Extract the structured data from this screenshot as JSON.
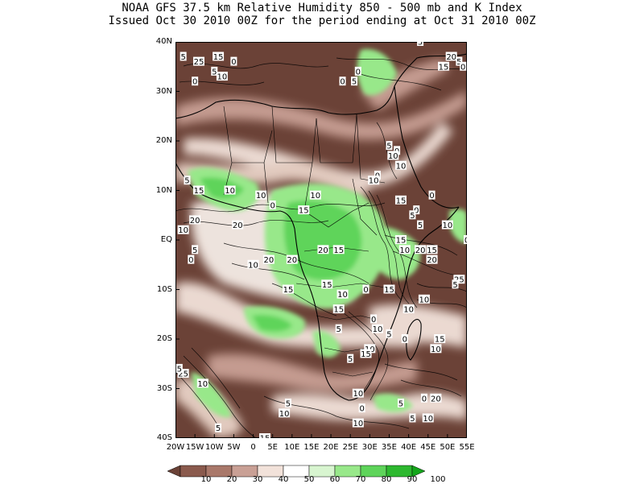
{
  "header": {
    "title_line1": "NOAA GFS 37.5 km Relative Humidity 850 - 500 mb and K Index",
    "title_line2": "Issued Oct 30 2010 00Z for the period ending at Oct 31 2010 00Z"
  },
  "axes": {
    "lat_labels": [
      "40N",
      "30N",
      "20N",
      "10N",
      "EQ",
      "10S",
      "20S",
      "30S",
      "40S"
    ],
    "lon_labels": [
      "20W",
      "15W",
      "10W",
      "5W",
      "0",
      "5E",
      "10E",
      "15E",
      "20E",
      "25E",
      "30E",
      "35E",
      "40E",
      "45E",
      "50E",
      "55E"
    ],
    "lat_range": [
      -40,
      40
    ],
    "lon_range": [
      -20,
      55
    ]
  },
  "legend": {
    "labels": [
      "10",
      "20",
      "30",
      "40",
      "50",
      "60",
      "70",
      "80",
      "90",
      "100"
    ],
    "colors": [
      "#6b4237",
      "#8a5a4d",
      "#a9786a",
      "#c9a095",
      "#f2e2da",
      "#ffffff",
      "#d8f5d0",
      "#98e88a",
      "#5ed45a",
      "#2db82f",
      "#14a61b"
    ]
  },
  "k_index_labels": [
    {
      "text": "5",
      "lon": -18,
      "lat": 37
    },
    {
      "text": "25",
      "lon": -14,
      "lat": 36
    },
    {
      "text": "15",
      "lon": -9,
      "lat": 37
    },
    {
      "text": "0",
      "lon": -5,
      "lat": 36
    },
    {
      "text": "5",
      "lon": -10,
      "lat": 34
    },
    {
      "text": "10",
      "lon": -8,
      "lat": 33
    },
    {
      "text": "0",
      "lon": -15,
      "lat": 32
    },
    {
      "text": "0",
      "lon": 23,
      "lat": 32
    },
    {
      "text": "5",
      "lon": 26,
      "lat": 32
    },
    {
      "text": "0",
      "lon": 27,
      "lat": 34
    },
    {
      "text": "5",
      "lon": 43,
      "lat": 40
    },
    {
      "text": "20",
      "lon": 51,
      "lat": 37
    },
    {
      "text": "15",
      "lon": 49,
      "lat": 35
    },
    {
      "text": "5",
      "lon": 53,
      "lat": 36
    },
    {
      "text": "0",
      "lon": 54,
      "lat": 35
    },
    {
      "text": "5",
      "lon": 35,
      "lat": 19
    },
    {
      "text": "0",
      "lon": 37,
      "lat": 18
    },
    {
      "text": "10",
      "lon": 36,
      "lat": 17
    },
    {
      "text": "10",
      "lon": 38,
      "lat": 15
    },
    {
      "text": "0",
      "lon": 32,
      "lat": 13
    },
    {
      "text": "10",
      "lon": 31,
      "lat": 12
    },
    {
      "text": "0",
      "lon": 46,
      "lat": 9
    },
    {
      "text": "15",
      "lon": 38,
      "lat": 8
    },
    {
      "text": "5",
      "lon": -17,
      "lat": 12
    },
    {
      "text": "15",
      "lon": -14,
      "lat": 10
    },
    {
      "text": "10",
      "lon": -6,
      "lat": 10
    },
    {
      "text": "10",
      "lon": 2,
      "lat": 9
    },
    {
      "text": "10",
      "lon": 16,
      "lat": 9
    },
    {
      "text": "0",
      "lon": 5,
      "lat": 7
    },
    {
      "text": "15",
      "lon": 13,
      "lat": 6
    },
    {
      "text": "0",
      "lon": 42,
      "lat": 6
    },
    {
      "text": "5",
      "lon": 41,
      "lat": 5
    },
    {
      "text": "5",
      "lon": 43,
      "lat": 3
    },
    {
      "text": "10",
      "lon": 50,
      "lat": 3
    },
    {
      "text": "20",
      "lon": -15,
      "lat": 4
    },
    {
      "text": "10",
      "lon": -18,
      "lat": 2
    },
    {
      "text": "20",
      "lon": -4,
      "lat": 3
    },
    {
      "text": "5",
      "lon": -15,
      "lat": -2
    },
    {
      "text": "0",
      "lon": -16,
      "lat": -4
    },
    {
      "text": "15",
      "lon": 38,
      "lat": 0
    },
    {
      "text": "0",
      "lon": 55,
      "lat": 0
    },
    {
      "text": "10",
      "lon": 39,
      "lat": -2
    },
    {
      "text": "20",
      "lon": 43,
      "lat": -2
    },
    {
      "text": "15",
      "lon": 46,
      "lat": -2
    },
    {
      "text": "20",
      "lon": 46,
      "lat": -4
    },
    {
      "text": "20",
      "lon": 4,
      "lat": -4
    },
    {
      "text": "20",
      "lon": 10,
      "lat": -4
    },
    {
      "text": "20",
      "lon": 18,
      "lat": -2
    },
    {
      "text": "15",
      "lon": 22,
      "lat": -2
    },
    {
      "text": "10",
      "lon": 0,
      "lat": -5
    },
    {
      "text": "25",
      "lon": 53,
      "lat": -8
    },
    {
      "text": "5",
      "lon": 52,
      "lat": -9
    },
    {
      "text": "15",
      "lon": 9,
      "lat": -10
    },
    {
      "text": "15",
      "lon": 19,
      "lat": -9
    },
    {
      "text": "10",
      "lon": 23,
      "lat": -11
    },
    {
      "text": "0",
      "lon": 29,
      "lat": -10
    },
    {
      "text": "15",
      "lon": 35,
      "lat": -10
    },
    {
      "text": "10",
      "lon": 40,
      "lat": -14
    },
    {
      "text": "10",
      "lon": 44,
      "lat": -12
    },
    {
      "text": "0",
      "lon": 31,
      "lat": -16
    },
    {
      "text": "5",
      "lon": 22,
      "lat": -18
    },
    {
      "text": "15",
      "lon": 22,
      "lat": -14
    },
    {
      "text": "10",
      "lon": 32,
      "lat": -18
    },
    {
      "text": "5",
      "lon": 35,
      "lat": -19
    },
    {
      "text": "0",
      "lon": 39,
      "lat": -20
    },
    {
      "text": "15",
      "lon": 48,
      "lat": -20
    },
    {
      "text": "10",
      "lon": 30,
      "lat": -22
    },
    {
      "text": "10",
      "lon": 47,
      "lat": -22
    },
    {
      "text": "15",
      "lon": 29,
      "lat": -23
    },
    {
      "text": "5",
      "lon": 25,
      "lat": -24
    },
    {
      "text": "25",
      "lon": -18,
      "lat": -27
    },
    {
      "text": "10",
      "lon": -13,
      "lat": -29
    },
    {
      "text": "5",
      "lon": -19,
      "lat": -26
    },
    {
      "text": "10",
      "lon": 27,
      "lat": -31
    },
    {
      "text": "5",
      "lon": 38,
      "lat": -33
    },
    {
      "text": "0",
      "lon": 44,
      "lat": -32
    },
    {
      "text": "20",
      "lon": 47,
      "lat": -32
    },
    {
      "text": "0",
      "lon": 28,
      "lat": -34
    },
    {
      "text": "5",
      "lon": 9,
      "lat": -33
    },
    {
      "text": "10",
      "lon": 8,
      "lat": -35
    },
    {
      "text": "10",
      "lon": 27,
      "lat": -37
    },
    {
      "text": "5",
      "lon": 41,
      "lat": -36
    },
    {
      "text": "10",
      "lon": 45,
      "lat": -36
    },
    {
      "text": "5",
      "lon": -9,
      "lat": -38
    },
    {
      "text": "15",
      "lon": 3,
      "lat": -40
    }
  ]
}
